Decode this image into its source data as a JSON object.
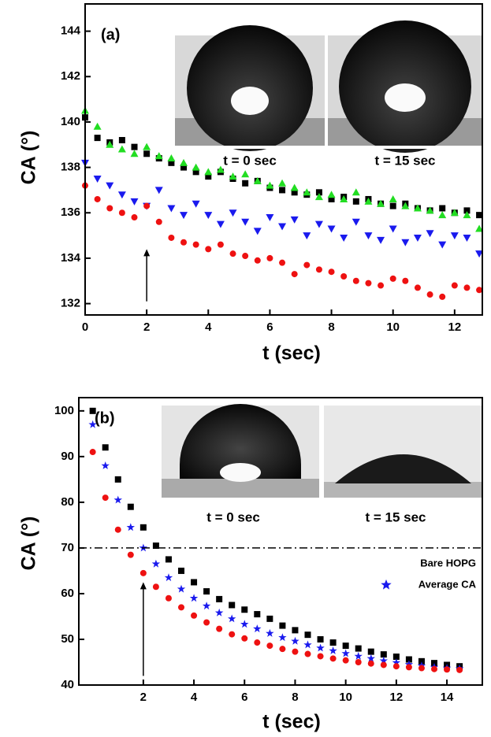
{
  "chart_data": [
    {
      "type": "scatter",
      "panel_label": "(a)",
      "x_label": "t (sec)",
      "y_label": "CA (°)",
      "inset_captions": [
        "t = 0 sec",
        "t = 15 sec"
      ],
      "xlim": [
        0,
        12.9
      ],
      "ylim": [
        131.5,
        145.2
      ],
      "xticks": [
        0,
        2,
        4,
        6,
        8,
        10,
        12
      ],
      "yticks": [
        132,
        134,
        136,
        138,
        140,
        142,
        144
      ],
      "arrow": {
        "x": 2,
        "y_from": 132.1,
        "y_to": 134.4
      },
      "x": [
        0,
        0.4,
        0.8,
        1.2,
        1.6,
        2,
        2.4,
        2.8,
        3.2,
        3.6,
        4,
        4.4,
        4.8,
        5.2,
        5.6,
        6,
        6.4,
        6.8,
        7.2,
        7.6,
        8,
        8.4,
        8.8,
        9.2,
        9.6,
        10,
        10.4,
        10.8,
        11.2,
        11.6,
        12,
        12.4,
        12.8
      ],
      "series": [
        {
          "color": "#000000",
          "marker": "square",
          "values": [
            140.2,
            139.3,
            139.1,
            139.2,
            138.9,
            138.6,
            138.4,
            138.2,
            138.0,
            137.8,
            137.6,
            137.8,
            137.5,
            137.3,
            137.4,
            137.1,
            137.0,
            136.9,
            136.8,
            136.9,
            136.6,
            136.7,
            136.5,
            136.6,
            136.4,
            136.3,
            136.4,
            136.2,
            136.1,
            136.2,
            136.0,
            136.1,
            135.9
          ]
        },
        {
          "color": "#22dd22",
          "marker": "triangle-up",
          "values": [
            140.5,
            139.8,
            139.0,
            138.8,
            138.6,
            138.9,
            138.5,
            138.4,
            138.2,
            138.0,
            137.8,
            137.9,
            137.6,
            137.7,
            137.4,
            137.2,
            137.3,
            137.1,
            136.9,
            136.7,
            136.8,
            136.6,
            136.9,
            136.5,
            136.4,
            136.6,
            136.3,
            136.2,
            136.1,
            135.9,
            136.0,
            135.9,
            135.3
          ]
        },
        {
          "color": "#1a1aee",
          "marker": "triangle-down",
          "values": [
            138.2,
            137.5,
            137.2,
            136.8,
            136.5,
            136.3,
            137.0,
            136.2,
            135.9,
            136.4,
            135.9,
            135.5,
            136.0,
            135.6,
            135.2,
            135.8,
            135.4,
            135.7,
            135.0,
            135.5,
            135.3,
            134.9,
            135.6,
            135.0,
            134.8,
            135.3,
            134.7,
            134.9,
            135.1,
            134.6,
            135.0,
            134.9,
            134.2
          ]
        },
        {
          "color": "#ee1111",
          "marker": "circle",
          "values": [
            137.2,
            136.6,
            136.2,
            136.0,
            135.8,
            136.3,
            135.6,
            134.9,
            134.7,
            134.6,
            134.4,
            134.6,
            134.2,
            134.1,
            133.9,
            134.0,
            133.8,
            133.3,
            133.7,
            133.5,
            133.4,
            133.2,
            133.0,
            132.9,
            132.8,
            133.1,
            133.0,
            132.7,
            132.4,
            132.3,
            132.8,
            132.7,
            132.6
          ]
        }
      ]
    },
    {
      "type": "scatter",
      "panel_label": "(b)",
      "x_label": "t (sec)",
      "y_label": "CA (°)",
      "inset_captions": [
        "t = 0 sec",
        "t = 15 sec"
      ],
      "xlim": [
        -0.55,
        15.4
      ],
      "ylim": [
        40,
        102.9
      ],
      "xticks": [
        2,
        4,
        6,
        8,
        10,
        12,
        14
      ],
      "yticks": [
        40,
        50,
        60,
        70,
        80,
        90,
        100
      ],
      "arrow": {
        "x": 2,
        "y_from": 42,
        "y_to": 62.5
      },
      "reference_line": {
        "y": 70,
        "label": "Bare HOPG"
      },
      "legend": "right",
      "x": [
        0,
        0.5,
        1,
        1.5,
        2,
        2.5,
        3,
        3.5,
        4,
        4.5,
        5,
        5.5,
        6,
        6.5,
        7,
        7.5,
        8,
        8.5,
        9,
        9.5,
        10,
        10.5,
        11,
        11.5,
        12,
        12.5,
        13,
        13.5,
        14,
        14.5
      ],
      "series": [
        {
          "color": "#000000",
          "marker": "square",
          "values": [
            100,
            92,
            85,
            79,
            74.5,
            70.5,
            67.5,
            65,
            62.5,
            60.5,
            58.8,
            57.5,
            56.5,
            55.5,
            54.5,
            53,
            52,
            51,
            50,
            49.3,
            48.6,
            48,
            47.3,
            46.7,
            46.2,
            45.6,
            45.2,
            44.8,
            44.4,
            44.1
          ]
        },
        {
          "name": "Average CA",
          "color": "#1a1aee",
          "marker": "star",
          "values": [
            97,
            88,
            80.5,
            74.5,
            70,
            66.5,
            63.5,
            61,
            59,
            57.3,
            55.8,
            54.5,
            53.3,
            52.3,
            51.3,
            50.4,
            49.6,
            48.8,
            48.1,
            47.5,
            46.9,
            46.3,
            45.8,
            45.3,
            44.9,
            44.5,
            44.2,
            43.9,
            43.7,
            43.6
          ]
        },
        {
          "color": "#ee1111",
          "marker": "circle",
          "values": [
            91,
            81,
            74,
            68.5,
            64.5,
            61.5,
            59,
            57,
            55.2,
            53.7,
            52.3,
            51.1,
            50.2,
            49.3,
            48.6,
            47.9,
            47.3,
            46.8,
            46.3,
            45.8,
            45.4,
            45,
            44.7,
            44.4,
            44.1,
            43.9,
            43.7,
            43.5,
            43.4,
            43.3
          ]
        }
      ]
    }
  ]
}
